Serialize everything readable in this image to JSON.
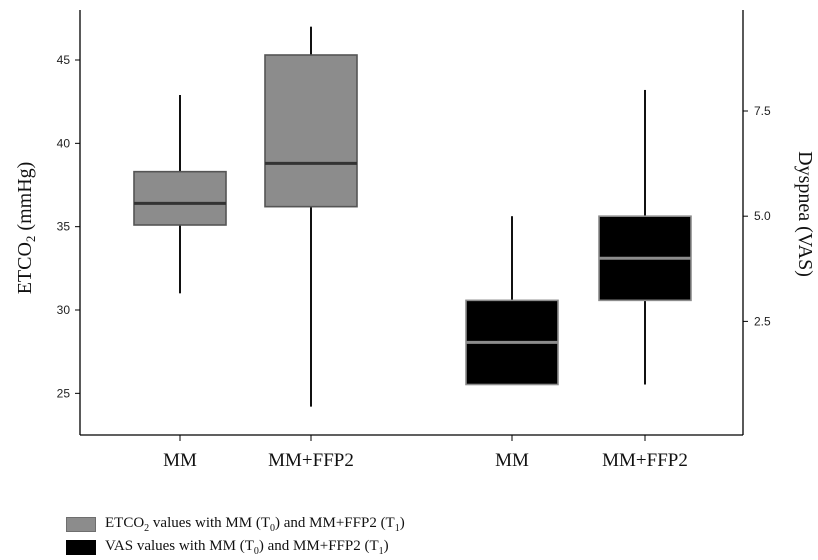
{
  "chart_data": {
    "type": "box",
    "left_axis": {
      "label_main": "ETCO",
      "label_sub": "2",
      "label_unit": " (mmHg)",
      "range": [
        22.5,
        48
      ],
      "ticks": [
        "25",
        "30",
        "35",
        "40",
        "45"
      ]
    },
    "right_axis": {
      "label": "Dyspnea (VAS)",
      "range": [
        -0.2,
        9.9
      ],
      "ticks": [
        "2.5",
        "5.0",
        "7.5"
      ]
    },
    "series": [
      {
        "axis": "left",
        "color": "#8c8c8c",
        "legend_parts": [
          "ETCO",
          "2",
          " values with MM (T",
          "0",
          ") and MM+FFP2 (T",
          "1",
          ")"
        ],
        "boxes": [
          {
            "category": "MM",
            "whisker_low": 31,
            "q1": 35.1,
            "median": 36.4,
            "q3": 38.3,
            "whisker_high": 42.9
          },
          {
            "category": "MM+FFP2",
            "whisker_low": 24.2,
            "q1": 36.2,
            "median": 38.8,
            "q3": 45.3,
            "whisker_high": 47
          }
        ]
      },
      {
        "axis": "right",
        "color": "#000000",
        "legend_parts": [
          "VAS values with MM (T",
          "0",
          ") and MM+FFP2 (T",
          "1",
          ")"
        ],
        "boxes": [
          {
            "category": "MM",
            "whisker_low": 1,
            "q1": 1,
            "median": 2,
            "q3": 3,
            "whisker_high": 5
          },
          {
            "category": "MM+FFP2",
            "whisker_low": 1,
            "q1": 3,
            "median": 4,
            "q3": 5,
            "whisker_high": 8
          }
        ]
      }
    ],
    "categories": [
      "MM",
      "MM+FFP2",
      "MM",
      "MM+FFP2"
    ],
    "grid": false,
    "legend_position": "bottom-left"
  }
}
